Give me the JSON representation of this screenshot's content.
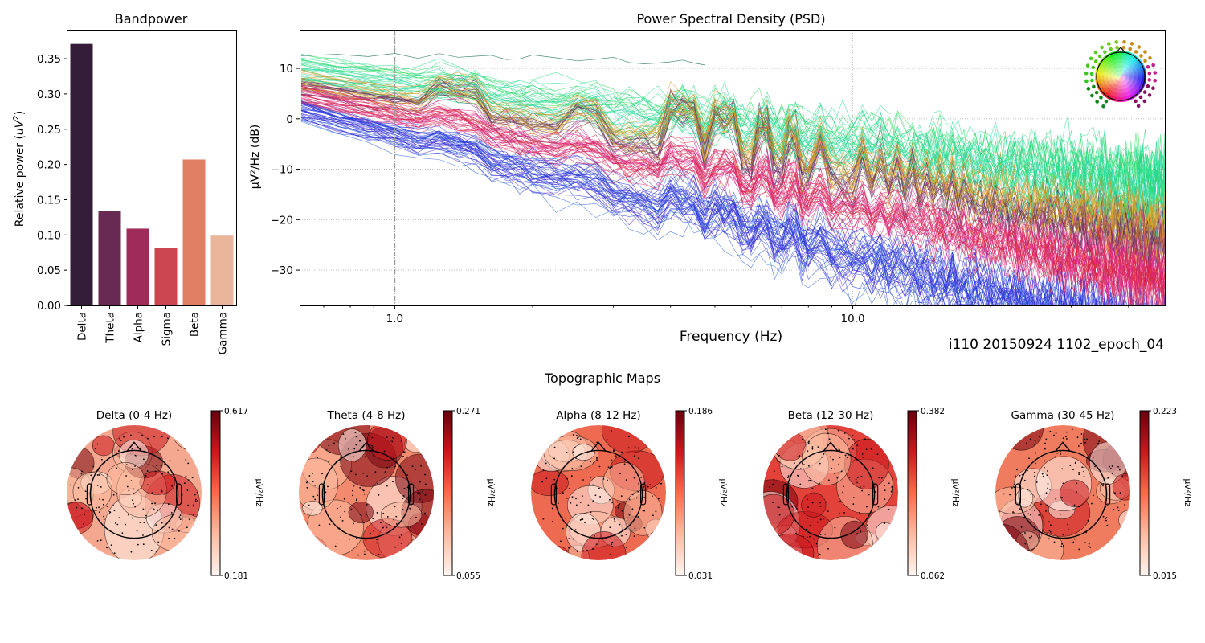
{
  "figure_label": "i110 20150924 1102_epoch_04",
  "chart_data": [
    {
      "type": "bar",
      "title": "Bandpower",
      "xlabel": "",
      "ylabel": "Relative power (uV²)",
      "ylabel_main": "Relative power (",
      "ylabel_unit": "uV",
      "ylabel_sup": "2",
      "ylabel_close": ")",
      "categories": [
        "Delta",
        "Theta",
        "Alpha",
        "Sigma",
        "Beta",
        "Gamma"
      ],
      "values": [
        0.371,
        0.134,
        0.109,
        0.081,
        0.207,
        0.099
      ],
      "colors": [
        "#341d38",
        "#682a52",
        "#9e2b5a",
        "#cc4651",
        "#e07f63",
        "#e9b59b"
      ],
      "ylim": [
        0,
        0.39
      ],
      "yticks": [
        0.0,
        0.05,
        0.1,
        0.15,
        0.2,
        0.25,
        0.3,
        0.35
      ],
      "ytick_labels": [
        "0.00",
        "0.05",
        "0.10",
        "0.15",
        "0.20",
        "0.25",
        "0.30",
        "0.35"
      ],
      "grid": false
    },
    {
      "type": "line",
      "title": "Power Spectral Density (PSD)",
      "xlabel": "Frequency (Hz)",
      "ylabel": "µV²/Hz (dB)",
      "xscale": "log",
      "xlim": [
        0.62,
        48
      ],
      "ylim": [
        -37,
        17.5
      ],
      "xticks": [
        1.0,
        10.0
      ],
      "xtick_labels": [
        "1.0",
        "10.0"
      ],
      "yticks": [
        10,
        0,
        -10,
        -20,
        -30
      ],
      "ytick_labels": [
        "10",
        "0",
        "−10",
        "−20",
        "−30"
      ],
      "vline_x": 1.0,
      "grid": true,
      "series_count": 256,
      "series_summary": "One PSD trace per EEG channel, colored by sensor position; mean level ~+8 dB at 0.6 Hz declining to ~-15 dB at 45 Hz, with line-noise-like peaks near 4.2, 5.2, 6.2, 7.2, 8.2, 9.2 Hz and beyond",
      "peak_freqs": [
        1.4,
        2.6,
        4.3,
        5.3,
        6.4,
        7.4,
        8.4,
        10.6,
        11.6,
        12.6,
        13.6,
        14.7,
        15.7,
        16.7,
        17.7
      ],
      "legend": "sensor-position color key (top-right)"
    },
    {
      "type": "heatmap",
      "title": "Topographic Maps",
      "maps": [
        {
          "title": "Delta (0-4 Hz)",
          "vmin": "0.181",
          "vmax": "0.617",
          "unit": "µV²/Hz"
        },
        {
          "title": "Theta (4-8 Hz)",
          "vmin": "0.055",
          "vmax": "0.271",
          "unit": "µV²/Hz"
        },
        {
          "title": "Alpha (8-12 Hz)",
          "vmin": "0.031",
          "vmax": "0.186",
          "unit": "µV²/Hz"
        },
        {
          "title": "Beta (12-30 Hz)",
          "vmin": "0.062",
          "vmax": "0.382",
          "unit": "µV²/Hz"
        },
        {
          "title": "Gamma (30-45 Hz)",
          "vmin": "0.015",
          "vmax": "0.223",
          "unit": "µV²/Hz"
        }
      ],
      "colormap": "Reds"
    }
  ]
}
